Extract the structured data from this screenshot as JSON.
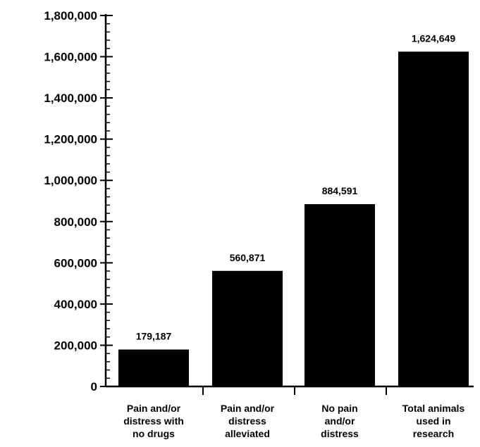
{
  "chart_data": {
    "type": "bar",
    "categories": [
      "Pain and/or distress with no drugs",
      "Pain and/or distress alleviated",
      "No pain and/or distress",
      "Total animals used in research"
    ],
    "category_lines": [
      [
        "Pain and/or",
        "distress with",
        "no drugs"
      ],
      [
        "Pain and/or",
        "distress",
        "alleviated"
      ],
      [
        "No pain",
        "and/or",
        "distress"
      ],
      [
        "Total animals",
        "used in",
        "research"
      ]
    ],
    "values": [
      179187,
      560871,
      884591,
      1624649
    ],
    "data_labels": [
      "179,187",
      "560,871",
      "884,591",
      "1,624,649"
    ],
    "y_ticks": [
      0,
      200000,
      400000,
      600000,
      800000,
      1000000,
      1200000,
      1400000,
      1600000,
      1800000
    ],
    "y_tick_labels": [
      "0",
      "200,000",
      "400,000",
      "600,000",
      "800,000",
      "1,000,000",
      "1,200,000",
      "1,400,000",
      "1,600,000",
      "1,800,000"
    ],
    "ylim": [
      0,
      1800000
    ],
    "title": "",
    "xlabel": "",
    "ylabel": "",
    "grid": false,
    "bar_color": "#000000"
  }
}
